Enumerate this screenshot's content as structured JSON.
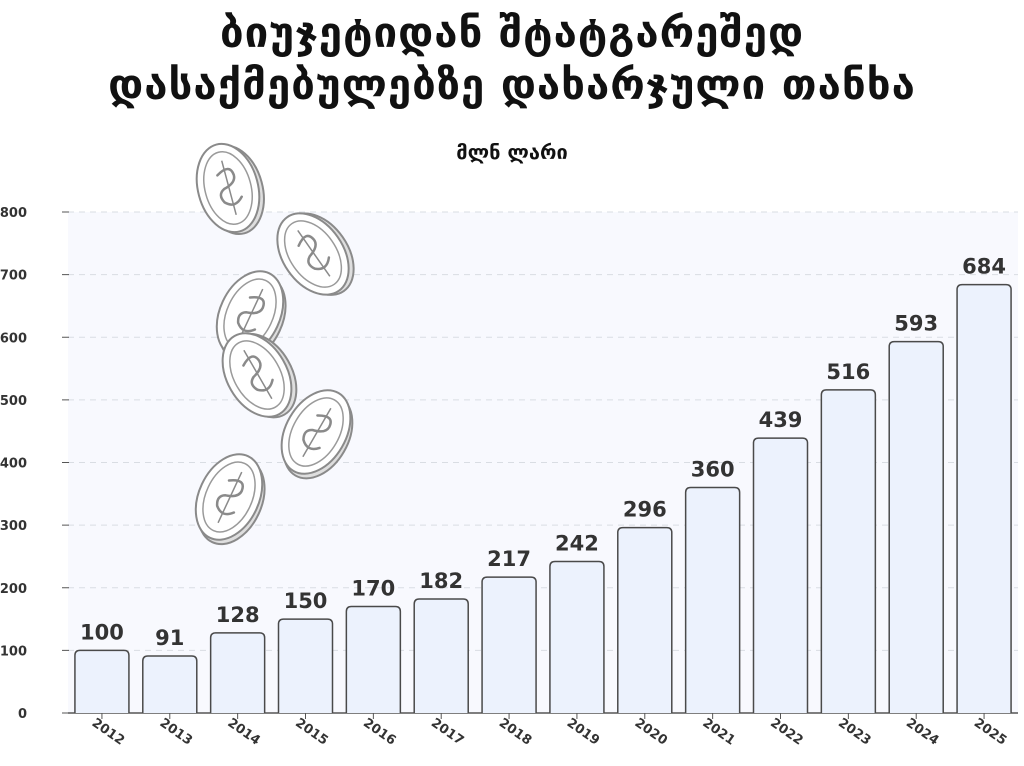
{
  "title": {
    "line1": "ბიუჯეტიდან შტატგარეშედ",
    "line2": "დასაქმებულებზე დახარჯული თანხა"
  },
  "subtitle": "მლნ ლარი",
  "chart_data": {
    "type": "bar",
    "categories": [
      "2012",
      "2013",
      "2014",
      "2015",
      "2016",
      "2017",
      "2018",
      "2019",
      "2020",
      "2021",
      "2022",
      "2023",
      "2024",
      "2025"
    ],
    "values": [
      100,
      91,
      128,
      150,
      170,
      182,
      217,
      242,
      296,
      360,
      439,
      516,
      593,
      684
    ],
    "ylim": [
      0,
      800
    ],
    "yticks": [
      0,
      100,
      200,
      300,
      400,
      500,
      600,
      700,
      800
    ],
    "grid": true,
    "data_labels": true,
    "colors": {
      "bar_fill": "#ecf2fd",
      "bar_stroke": "#4a4a4a",
      "grid": "#d9dde3",
      "plot_bg": "#f8f9fe"
    }
  },
  "decoration": {
    "icon": "coin-icon",
    "count": 6
  }
}
